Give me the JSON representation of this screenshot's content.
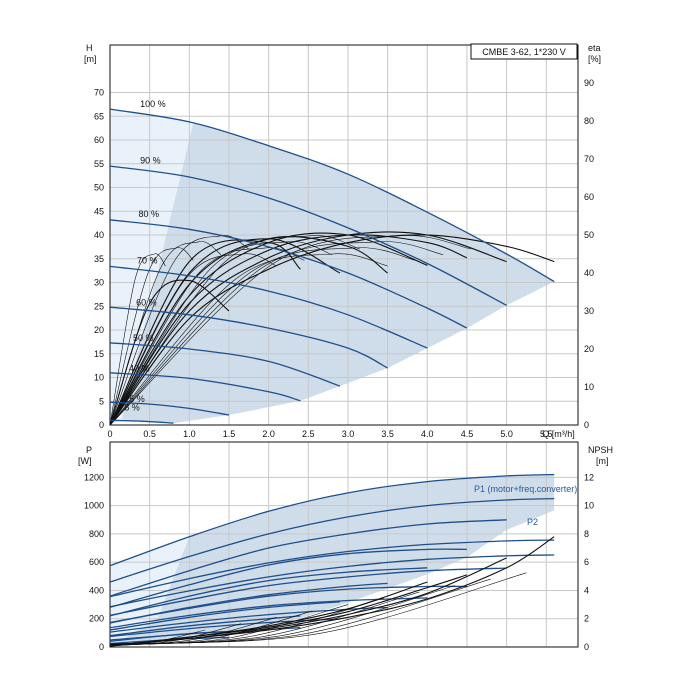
{
  "chart_data": [
    {
      "type": "line",
      "title": "CMBE 3-62, 1*230 V",
      "xlabel": "Q [m³/h]",
      "ylabel_left": "H",
      "ylabel_left_unit": "[m]",
      "ylabel_right": "eta",
      "ylabel_right_unit": "[%]",
      "xlim": [
        0,
        5.9
      ],
      "ylim": [
        0,
        80
      ],
      "y2lim": [
        0,
        100
      ],
      "x_ticks": [
        "0",
        "0.5",
        "1.0",
        "1.5",
        "2.0",
        "2.5",
        "3.0",
        "3.5",
        "4.0",
        "4.5",
        "5.0",
        "5.5"
      ],
      "y_ticks": [
        "0",
        "5",
        "10",
        "15",
        "20",
        "25",
        "30",
        "35",
        "40",
        "45",
        "50",
        "55",
        "60",
        "65",
        "70"
      ],
      "y2_ticks": [
        "0",
        "10",
        "20",
        "30",
        "40",
        "50",
        "60",
        "70",
        "80",
        "90"
      ],
      "speed_labels": [
        "100 %",
        "90 %",
        "80 %",
        "70 %",
        "60 %",
        "50 %",
        "40 %",
        "25 %",
        "8 %"
      ],
      "head_curves": [
        {
          "speed": 100,
          "x": [
            0,
            1.0,
            2.0,
            3.0,
            4.0,
            5.0,
            5.6
          ],
          "y": [
            66.5,
            63.8,
            58.8,
            52.8,
            44.8,
            36.0,
            30.2
          ]
        },
        {
          "speed": 90,
          "x": [
            0,
            1.0,
            2.0,
            3.0,
            4.0,
            5.0
          ],
          "y": [
            54.5,
            52.2,
            47.8,
            41.5,
            34.0,
            25.2
          ]
        },
        {
          "speed": 80,
          "x": [
            0,
            1.0,
            2.0,
            3.0,
            4.0,
            4.5
          ],
          "y": [
            43.2,
            41.2,
            37.5,
            32.0,
            24.6,
            20.4
          ]
        },
        {
          "speed": 70,
          "x": [
            0,
            1.0,
            2.0,
            3.0,
            4.0
          ],
          "y": [
            33.4,
            31.4,
            28.2,
            23.2,
            16.2
          ]
        },
        {
          "speed": 60,
          "x": [
            0,
            1.0,
            2.0,
            3.0,
            3.5
          ],
          "y": [
            24.8,
            23.2,
            20.4,
            16.2,
            12.0
          ]
        },
        {
          "speed": 50,
          "x": [
            0,
            1.0,
            2.0,
            2.9
          ],
          "y": [
            17.3,
            16.0,
            13.4,
            8.2
          ]
        },
        {
          "speed": 40,
          "x": [
            0,
            1.0,
            2.0,
            2.4
          ],
          "y": [
            11.0,
            9.8,
            7.0,
            5.1
          ]
        },
        {
          "speed": 25,
          "x": [
            0,
            0.5,
            1.0,
            1.5
          ],
          "y": [
            4.8,
            4.4,
            3.5,
            2.1
          ]
        },
        {
          "speed": 8,
          "x": [
            0,
            0.4,
            0.8
          ],
          "y": [
            1.0,
            0.8,
            0.4
          ]
        }
      ],
      "efficiency_curves": [
        {
          "x": [
            0,
            1.0,
            2.0,
            3.0,
            4.0,
            5.0,
            5.6
          ],
          "y": [
            0,
            28,
            41,
            48,
            50,
            47,
            43
          ]
        },
        {
          "x": [
            0,
            1.0,
            2.0,
            3.0,
            4.0,
            5.0
          ],
          "y": [
            0,
            30,
            44,
            50,
            50,
            43
          ]
        },
        {
          "x": [
            0,
            1.0,
            2.0,
            3.0,
            4.0,
            4.5
          ],
          "y": [
            0,
            32,
            46,
            50,
            48,
            44
          ]
        },
        {
          "x": [
            0,
            1.0,
            2.0,
            3.0,
            4.0
          ],
          "y": [
            0,
            34,
            48,
            50,
            42
          ]
        },
        {
          "x": [
            0,
            1.0,
            2.0,
            3.0,
            3.5
          ],
          "y": [
            0,
            37,
            49,
            47,
            40
          ]
        },
        {
          "x": [
            0,
            1.0,
            2.0,
            2.9
          ],
          "y": [
            0,
            40,
            49,
            40
          ]
        },
        {
          "x": [
            0,
            1.0,
            2.0,
            2.4
          ],
          "y": [
            0,
            43,
            48,
            41
          ]
        },
        {
          "x": [
            0,
            0.5,
            1.0,
            1.5
          ],
          "y": [
            0,
            32,
            38,
            30
          ]
        }
      ]
    },
    {
      "type": "line",
      "xlabel": "",
      "ylabel_left": "P",
      "ylabel_left_unit": "[W]",
      "ylabel_right": "NPSH",
      "ylabel_right_unit": "[m]",
      "xlim": [
        0,
        5.9
      ],
      "ylim": [
        0,
        1450
      ],
      "y2lim": [
        0,
        14.5
      ],
      "y_ticks": [
        "0",
        "200",
        "400",
        "600",
        "800",
        "1000",
        "1200"
      ],
      "y2_ticks": [
        "0",
        "2",
        "4",
        "6",
        "8",
        "10",
        "12"
      ],
      "series_labels": [
        "P1 (motor+freq.converter)",
        "P2"
      ],
      "p1_curves": [
        {
          "x": [
            0,
            1.0,
            2.0,
            3.0,
            4.0,
            5.0,
            5.6
          ],
          "y": [
            575,
            780,
            960,
            1090,
            1170,
            1210,
            1220
          ]
        },
        {
          "x": [
            0,
            1.0,
            2.0,
            3.0,
            4.0,
            5.0,
            5.6
          ],
          "y": [
            460,
            640,
            800,
            920,
            1000,
            1040,
            1050
          ]
        },
        {
          "x": [
            0,
            1.0,
            2.0,
            3.0,
            4.0,
            5.0
          ],
          "y": [
            360,
            540,
            700,
            800,
            870,
            900
          ]
        },
        {
          "x": [
            0,
            1.0,
            2.0,
            3.0,
            4.0,
            4.5
          ],
          "y": [
            280,
            440,
            580,
            660,
            690,
            690
          ]
        },
        {
          "x": [
            0,
            1.0,
            2.0,
            3.0,
            4.0
          ],
          "y": [
            220,
            360,
            470,
            530,
            560
          ]
        },
        {
          "x": [
            0,
            1.0,
            2.0,
            3.0,
            3.5
          ],
          "y": [
            170,
            280,
            370,
            430,
            450
          ]
        },
        {
          "x": [
            0,
            1.0,
            2.0,
            2.9
          ],
          "y": [
            120,
            210,
            280,
            320
          ]
        },
        {
          "x": [
            0,
            1.0,
            2.0,
            2.4
          ],
          "y": [
            80,
            150,
            200,
            220
          ]
        },
        {
          "x": [
            0,
            0.5,
            1.0,
            1.5
          ],
          "y": [
            40,
            70,
            95,
            110
          ]
        }
      ],
      "npsh_curves": [
        {
          "x": [
            0.2,
            1.0,
            2.0,
            3.0,
            4.0,
            5.0,
            5.6
          ],
          "y": [
            0.2,
            0.6,
            1.2,
            2.1,
            3.4,
            5.6,
            7.8
          ]
        },
        {
          "x": [
            0.2,
            1.0,
            2.0,
            3.0,
            4.0,
            5.0
          ],
          "y": [
            0.2,
            0.6,
            1.3,
            2.3,
            3.8,
            6.3
          ]
        },
        {
          "x": [
            0.2,
            1.0,
            2.0,
            3.0,
            4.0,
            4.5
          ],
          "y": [
            0.2,
            0.7,
            1.4,
            2.5,
            4.2,
            5.1
          ]
        },
        {
          "x": [
            0.2,
            1.0,
            2.0,
            3.0,
            4.0
          ],
          "y": [
            0.2,
            0.7,
            1.5,
            2.7,
            4.6
          ]
        }
      ]
    }
  ]
}
